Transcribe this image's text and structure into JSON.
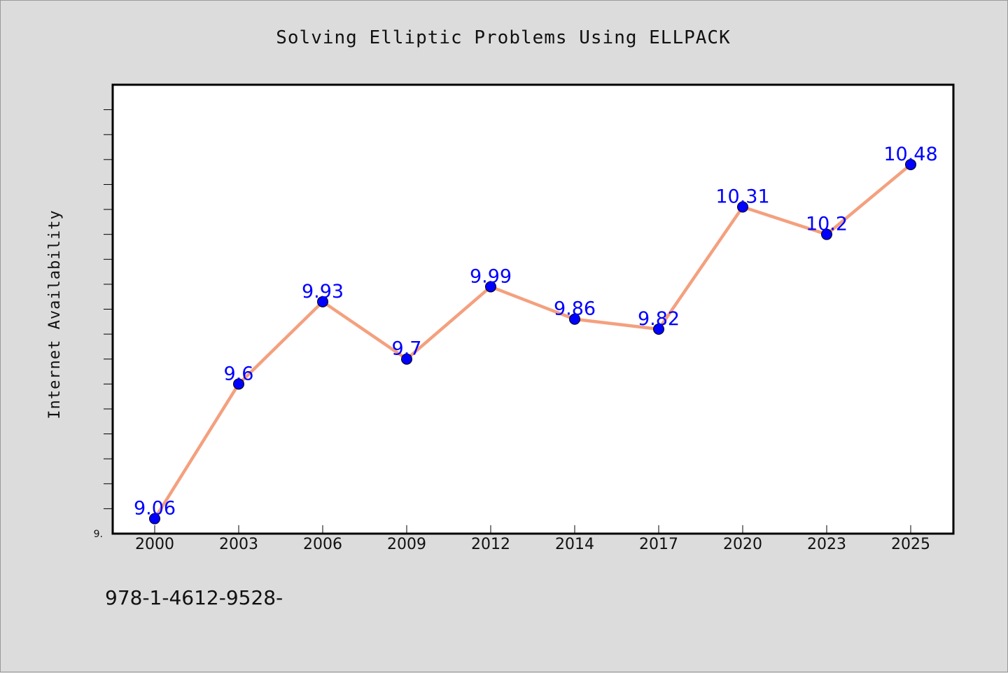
{
  "colors": {
    "background": "#dcdcdc",
    "plot_background": "#ffffff",
    "line": "#f4a07e",
    "marker": "#0000ff",
    "data_label": "#0000ff",
    "axis": "#000000"
  },
  "footer": {
    "text": "978-1-4612-9528-"
  },
  "chart_data": {
    "type": "line",
    "title": "Solving Elliptic Problems Using ELLPACK",
    "xlabel": "",
    "ylabel": "Internet Availability",
    "categories": [
      "2000",
      "2003",
      "2006",
      "2009",
      "2012",
      "2014",
      "2017",
      "2020",
      "2023",
      "2025"
    ],
    "series": [
      {
        "values": [
          9.06,
          9.6,
          9.93,
          9.7,
          9.99,
          9.86,
          9.82,
          10.31,
          10.2,
          10.48
        ],
        "data_labels": [
          "9.06",
          "9.6",
          "9.93",
          "9.7",
          "9.99",
          "9.86",
          "9.82",
          "10.31",
          "10.2",
          "10.48"
        ]
      }
    ],
    "ylim": [
      9.0,
      10.8
    ],
    "y_tick_label": "9.",
    "y_minor_tick_step": 0.1,
    "grid": false,
    "legend": "none",
    "marker": "filled-circle"
  }
}
